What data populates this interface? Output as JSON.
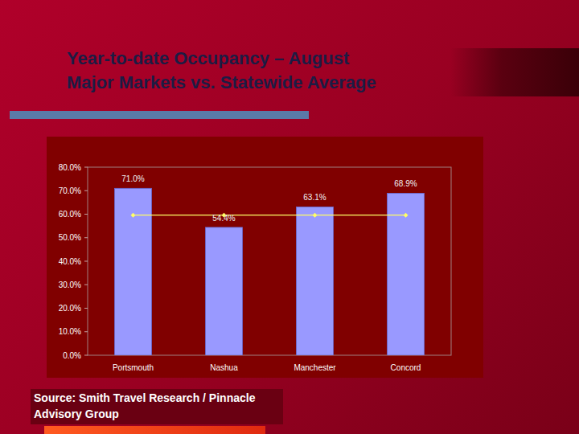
{
  "chart_data": {
    "type": "bar",
    "title": "Year-to-date Occupancy – August",
    "subtitle": "Major Markets vs. Statewide Average",
    "categories": [
      "Portsmouth",
      "Nashua",
      "Manchester",
      "Concord"
    ],
    "series": [
      {
        "type": "bar",
        "color": "#9999ff",
        "values": [
          71.0,
          54.4,
          63.1,
          68.9
        ],
        "value_labels": [
          "71.0%",
          "54.4%",
          "63.1%",
          "68.9%"
        ]
      },
      {
        "type": "line",
        "color": "#ffff66",
        "marker": "diamond",
        "line_style": "solid",
        "values": [
          59.6,
          59.6,
          59.6,
          59.6
        ]
      }
    ],
    "ylim": [
      0,
      80
    ],
    "yticks": [
      {
        "value": 0,
        "label": "0.0%"
      },
      {
        "value": 10,
        "label": "10.0%"
      },
      {
        "value": 20,
        "label": "20.0%"
      },
      {
        "value": 30,
        "label": "30.0%"
      },
      {
        "value": 40,
        "label": "40.0%"
      },
      {
        "value": 50,
        "label": "50.0%"
      },
      {
        "value": 60,
        "label": "60.0%"
      },
      {
        "value": 70,
        "label": "70.0%"
      },
      {
        "value": 80,
        "label": "80.0%"
      }
    ],
    "grid": false,
    "data_labels": true,
    "annotations": [
      "Source: Smith Travel Research / Pinnacle Advisory Group"
    ]
  }
}
